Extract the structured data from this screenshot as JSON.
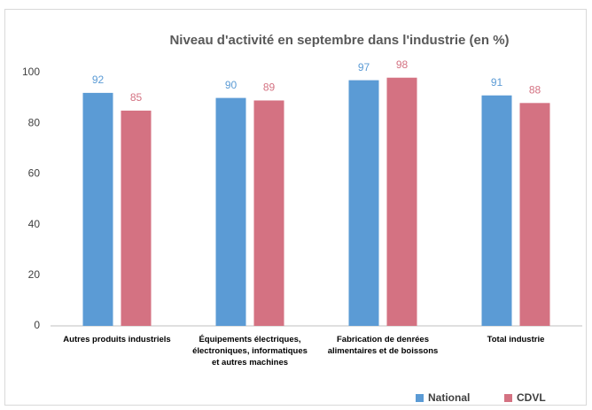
{
  "chart_data": {
    "type": "bar",
    "title": "Niveau d'activité en septembre dans l'industrie (en %)",
    "categories": [
      "Autres produits industriels",
      "Équipements électriques, électroniques, informatiques et autres machines",
      "Fabrication de denrées alimentaires et de boissons",
      "Total industrie"
    ],
    "series": [
      {
        "name": "National",
        "color": "#5b9bd5",
        "values": [
          92,
          90,
          97,
          91
        ]
      },
      {
        "name": "CDVL",
        "color": "#d47282",
        "values": [
          85,
          89,
          98,
          88
        ]
      }
    ],
    "ylim": [
      0,
      100
    ],
    "yticks": [
      0,
      20,
      40,
      60,
      80,
      100
    ],
    "grid": false,
    "legend": "bottom-right"
  }
}
